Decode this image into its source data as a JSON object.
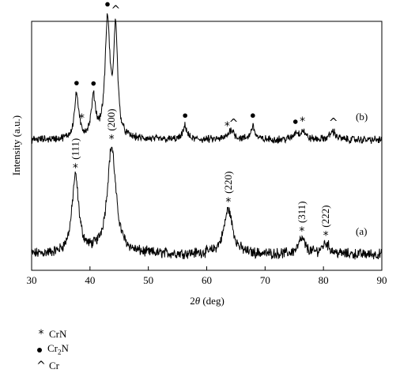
{
  "chart_data": {
    "type": "line",
    "xlabel_prefix": "2",
    "xlabel_symbol": "θ",
    "xlabel_suffix": " (deg)",
    "ylabel": "Intensity (a.u.)",
    "xlim": [
      30,
      90
    ],
    "xticks": [
      30,
      40,
      50,
      60,
      70,
      80,
      90
    ],
    "yticks_labeled": false,
    "grid": false,
    "series": [
      {
        "name": "(a)",
        "peaks": [
          {
            "x": 37.5,
            "height": 0.36,
            "width": 0.7
          },
          {
            "x": 43.7,
            "height": 0.5,
            "width": 0.9
          },
          {
            "x": 63.7,
            "height": 0.21,
            "width": 0.9
          },
          {
            "x": 76.3,
            "height": 0.07,
            "width": 0.7
          },
          {
            "x": 80.4,
            "height": 0.05,
            "width": 0.8
          }
        ]
      },
      {
        "name": "(b)",
        "peaks": [
          {
            "x": 37.7,
            "height": 0.26,
            "width": 0.45
          },
          {
            "x": 40.6,
            "height": 0.23,
            "width": 0.45
          },
          {
            "x": 43.0,
            "height": 0.68,
            "width": 0.5
          },
          {
            "x": 44.4,
            "height": 0.63,
            "width": 0.4
          },
          {
            "x": 56.3,
            "height": 0.08,
            "width": 0.4
          },
          {
            "x": 64.2,
            "height": 0.06,
            "width": 0.6
          },
          {
            "x": 67.9,
            "height": 0.08,
            "width": 0.4
          },
          {
            "x": 75.3,
            "height": 0.04,
            "width": 0.5
          },
          {
            "x": 76.5,
            "height": 0.05,
            "width": 0.5
          },
          {
            "x": 81.6,
            "height": 0.05,
            "width": 0.6
          }
        ]
      }
    ],
    "annotations_a": [
      {
        "x": 37.5,
        "symbol": "*",
        "label": "(111)"
      },
      {
        "x": 43.7,
        "symbol": "*",
        "label": "(200)"
      },
      {
        "x": 63.7,
        "symbol": "*",
        "label": "(220)"
      },
      {
        "x": 76.3,
        "symbol": "*",
        "label": "(311)"
      },
      {
        "x": 80.4,
        "symbol": "*",
        "label": "(222)"
      }
    ],
    "annotations_b": [
      {
        "x": 37.7,
        "symbol": "●"
      },
      {
        "x": 38.6,
        "symbol": "*"
      },
      {
        "x": 40.6,
        "symbol": "●"
      },
      {
        "x": 43.0,
        "symbol": "●"
      },
      {
        "x": 44.4,
        "symbol": "^"
      },
      {
        "x": 56.3,
        "symbol": "●"
      },
      {
        "x": 63.5,
        "symbol": "*"
      },
      {
        "x": 64.6,
        "symbol": "^"
      },
      {
        "x": 67.9,
        "symbol": "●"
      },
      {
        "x": 75.2,
        "symbol": "●"
      },
      {
        "x": 76.4,
        "symbol": "*"
      },
      {
        "x": 81.7,
        "symbol": "^"
      }
    ],
    "legend": [
      {
        "symbol": "*",
        "label_main": "CrN",
        "label_sub": ""
      },
      {
        "symbol": "●",
        "label_main": "Cr",
        "label_sub": "2",
        "label_tail": "N"
      },
      {
        "symbol": "^",
        "label_main": "Cr",
        "label_sub": ""
      }
    ]
  }
}
